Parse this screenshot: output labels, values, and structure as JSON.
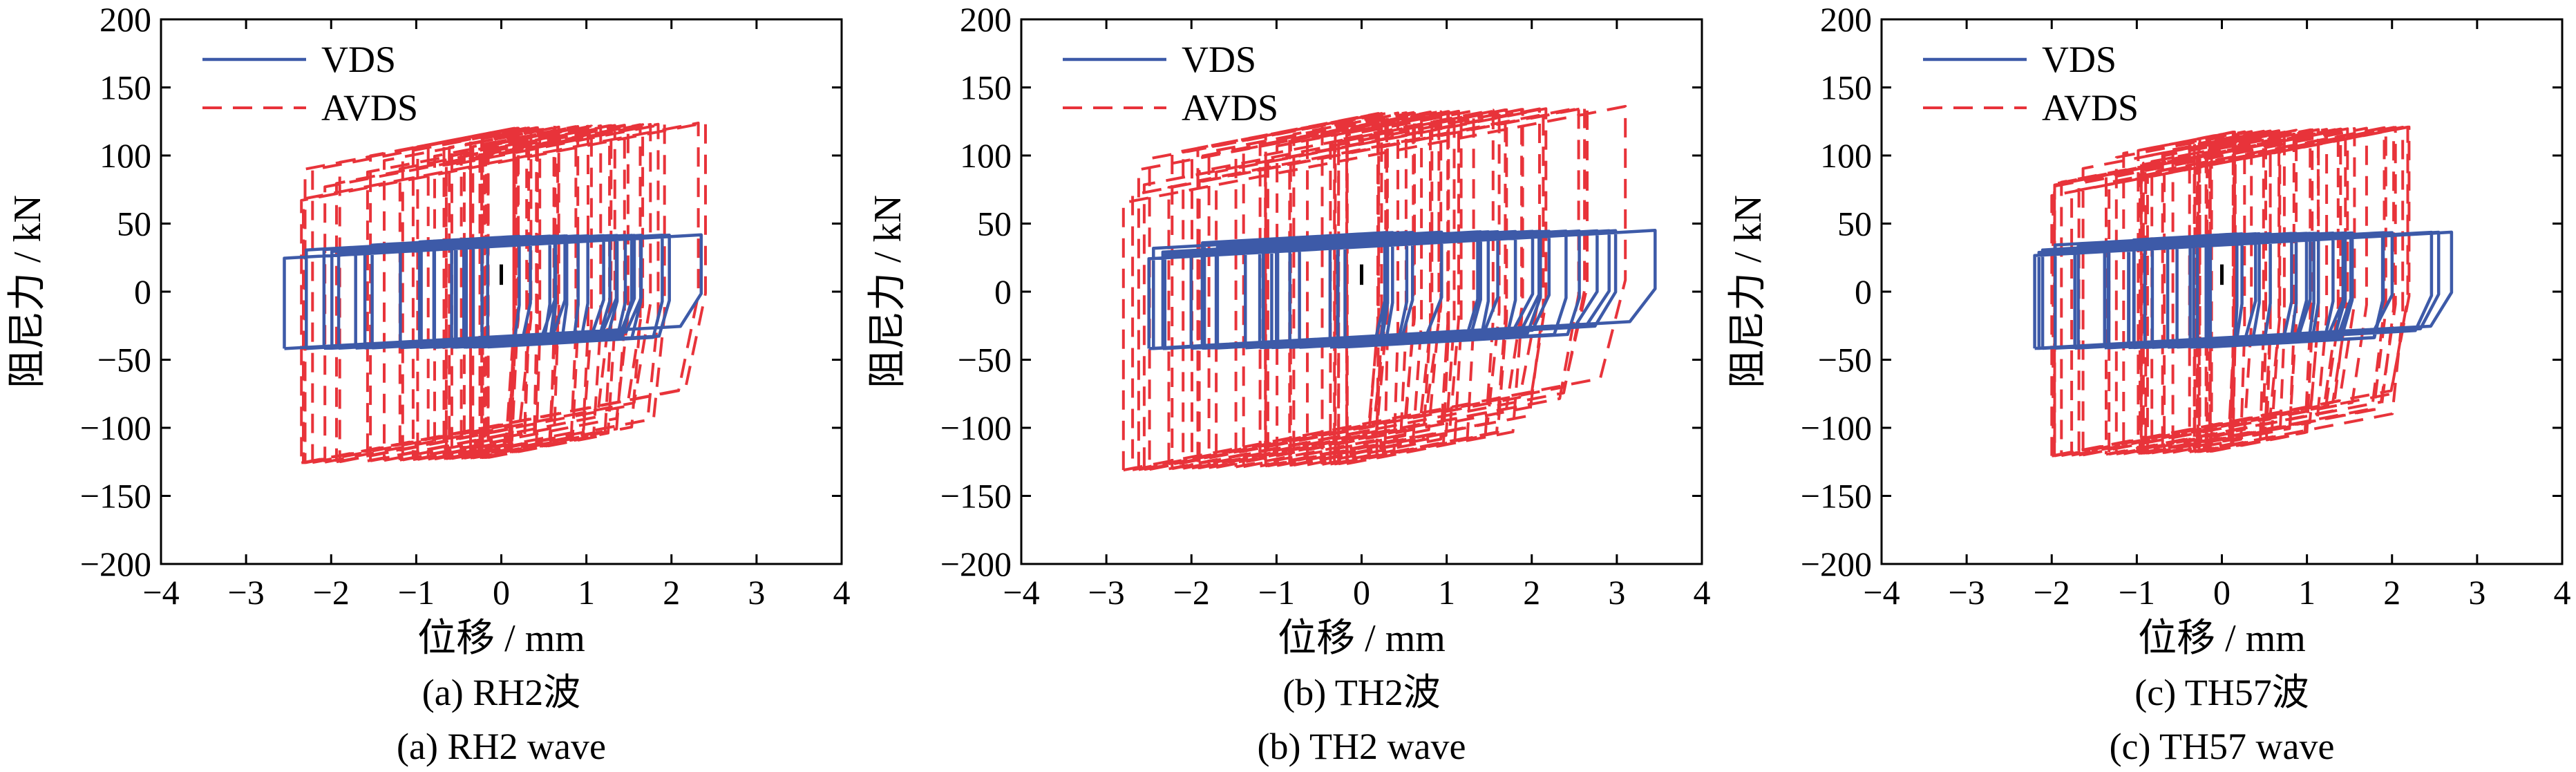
{
  "colors": {
    "vds": "#3d5aa8",
    "avds": "#e8333a"
  },
  "chart_data": [
    {
      "type": "line",
      "caption_zh": "(a) RH2波",
      "caption_en": "(a) RH2 wave",
      "xlabel": "位移 / mm",
      "ylabel": "阻尼力 / kN",
      "xlim": [
        -4,
        4
      ],
      "ylim": [
        -200,
        200
      ],
      "xticks": [
        -4,
        -3,
        -2,
        -1,
        0,
        1,
        2,
        3,
        4
      ],
      "yticks": [
        -200,
        -150,
        -100,
        -50,
        0,
        50,
        100,
        150,
        200
      ],
      "legend": {
        "position": "top-left",
        "entries": [
          "VDS",
          "AVDS"
        ]
      },
      "grid": false,
      "series": [
        {
          "name": "VDS",
          "style": "solid",
          "disp_range": [
            -2.55,
            2.35
          ],
          "force_amplitude": [
            45,
            45
          ],
          "approx_slope_kN_per_mm": 3.5
        },
        {
          "name": "AVDS",
          "style": "dashed",
          "disp_range": [
            -2.35,
            2.4
          ],
          "force_amplitude": [
            135,
            133
          ],
          "approx_slope_kN_per_mm": 12
        }
      ]
    },
    {
      "type": "line",
      "caption_zh": "(b) TH2波",
      "caption_en": "(b) TH2 wave",
      "xlabel": "位移 / mm",
      "ylabel": "阻尼力 / kN",
      "xlim": [
        -4,
        4
      ],
      "ylim": [
        -200,
        200
      ],
      "xticks": [
        -4,
        -3,
        -2,
        -1,
        0,
        1,
        2,
        3,
        4
      ],
      "yticks": [
        -200,
        -150,
        -100,
        -50,
        0,
        50,
        100,
        150,
        200
      ],
      "legend": {
        "position": "top-left",
        "entries": [
          "VDS",
          "AVDS"
        ]
      },
      "grid": false,
      "series": [
        {
          "name": "VDS",
          "style": "solid",
          "disp_range": [
            -2.5,
            3.45
          ],
          "force_amplitude": [
            45,
            48
          ],
          "approx_slope_kN_per_mm": 3.5
        },
        {
          "name": "AVDS",
          "style": "dashed",
          "disp_range": [
            -2.8,
            3.1
          ],
          "force_amplitude": [
            140,
            145
          ],
          "approx_slope_kN_per_mm": 12
        }
      ]
    },
    {
      "type": "line",
      "caption_zh": "(c) TH57波",
      "caption_en": "(c) TH57 wave",
      "xlabel": "位移 / mm",
      "ylabel": "阻尼力 / kN",
      "xlim": [
        -4,
        4
      ],
      "ylim": [
        -200,
        200
      ],
      "xticks": [
        -4,
        -3,
        -2,
        -1,
        0,
        1,
        2,
        3,
        4
      ],
      "yticks": [
        -200,
        -150,
        -100,
        -50,
        0,
        50,
        100,
        150,
        200
      ],
      "legend": {
        "position": "top-left",
        "entries": [
          "VDS",
          "AVDS"
        ]
      },
      "grid": false,
      "series": [
        {
          "name": "VDS",
          "style": "solid",
          "disp_range": [
            -2.2,
            2.7
          ],
          "force_amplitude": [
            45,
            47
          ],
          "approx_slope_kN_per_mm": 3.5
        },
        {
          "name": "AVDS",
          "style": "dashed",
          "disp_range": [
            -2.0,
            2.2
          ],
          "force_amplitude": [
            130,
            130
          ],
          "approx_slope_kN_per_mm": 12
        }
      ]
    }
  ]
}
